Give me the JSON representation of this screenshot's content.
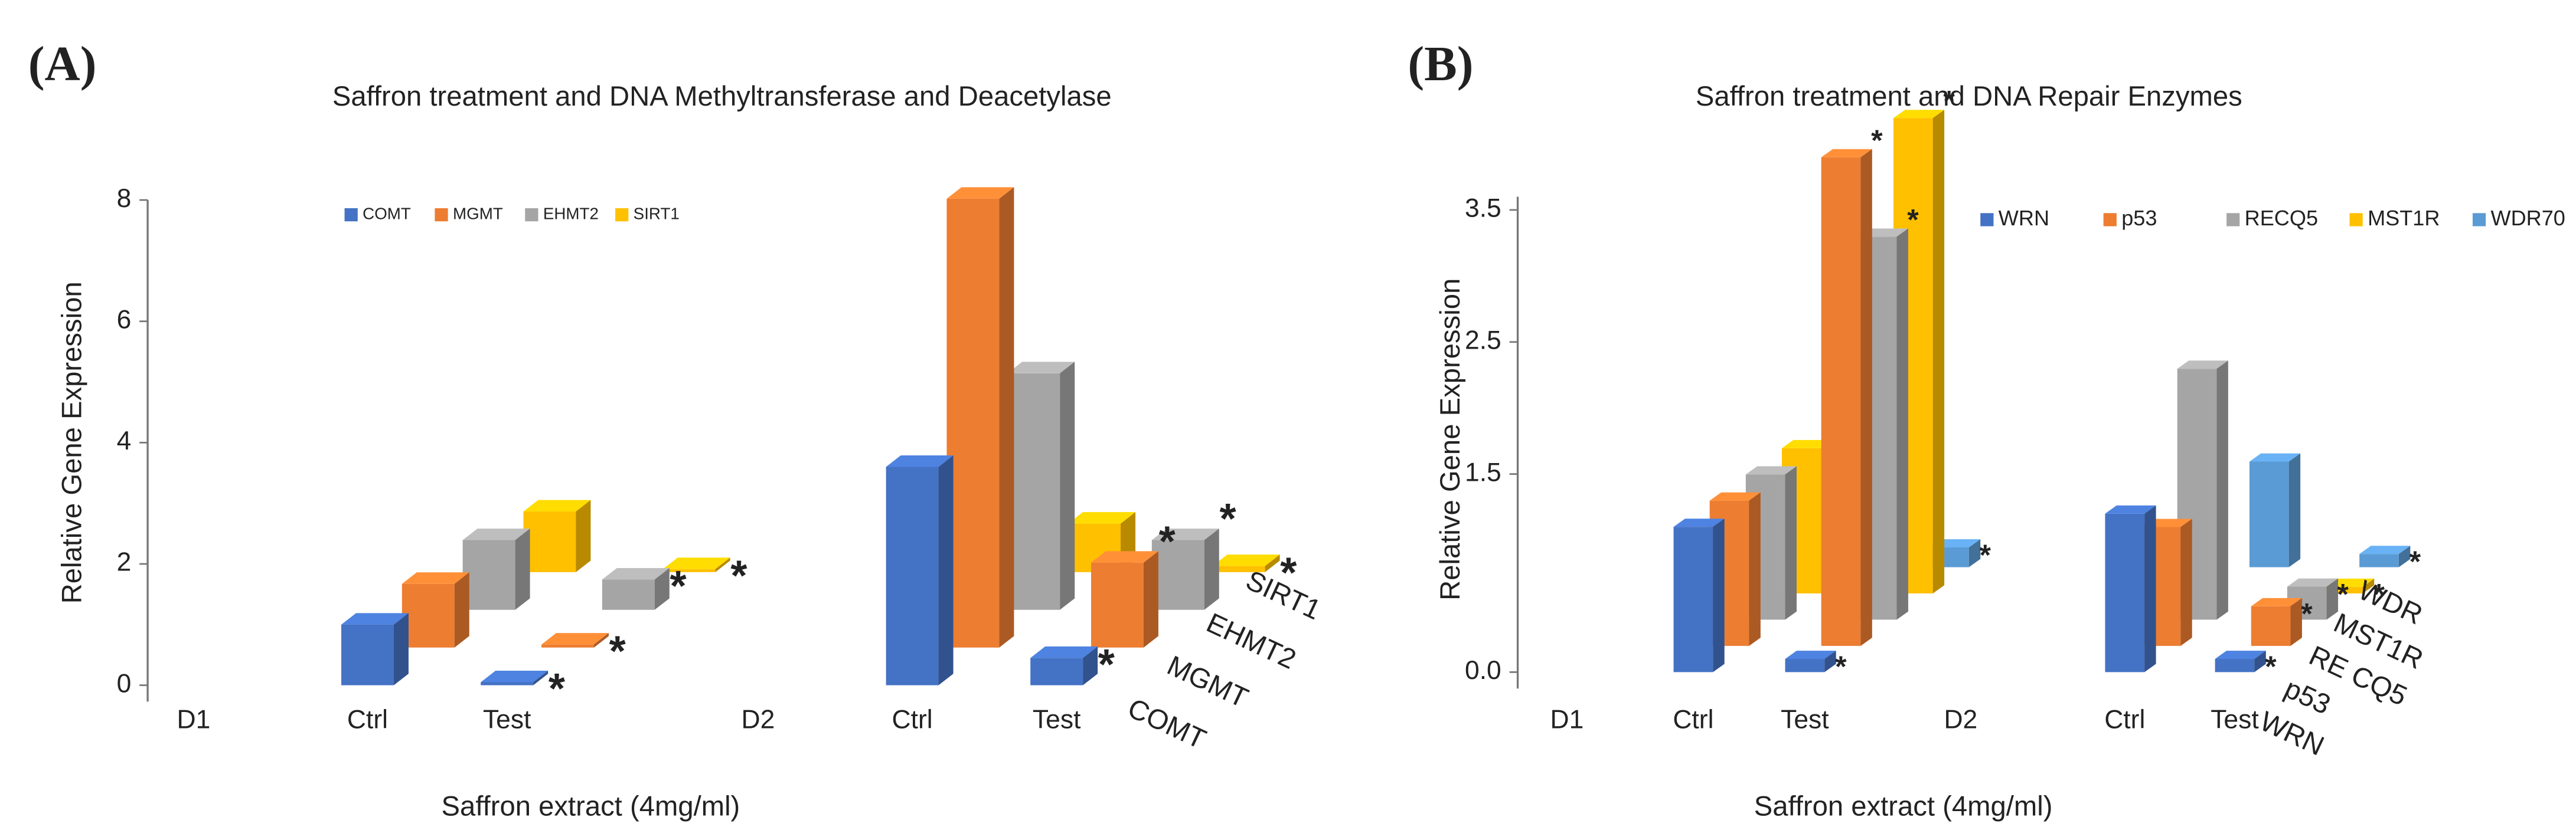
{
  "chart_data": [
    {
      "type": "bar3d",
      "panel_label": "(A)",
      "title": "Saffron treatment and DNA Methyltransferase and Deacetylase",
      "y_label": "Relative Gene Expression",
      "x_label": "Saffron extract (4mg/ml)",
      "groups": [
        "D1",
        "D2"
      ],
      "categories": [
        "Ctrl",
        "Test",
        "Ctrl",
        "Test"
      ],
      "ylim": [
        0,
        8
      ],
      "yticks": [
        0,
        2,
        4,
        6,
        8
      ],
      "significance_marker": "*",
      "depth_labels": [
        "COMT",
        "MGMT",
        "EHMT2",
        "SIRT1"
      ],
      "series": [
        {
          "name": "COMT",
          "color": "#4472c4",
          "values": [
            1.0,
            0.05,
            3.6,
            0.45
          ],
          "significant": [
            false,
            true,
            false,
            true
          ]
        },
        {
          "name": "MGMT",
          "color": "#ed7d31",
          "values": [
            1.05,
            0.05,
            7.4,
            1.4
          ],
          "significant": [
            false,
            true,
            false,
            true
          ]
        },
        {
          "name": "EHMT2",
          "color": "#a5a5a5",
          "values": [
            1.15,
            0.5,
            3.9,
            1.15
          ],
          "significant": [
            false,
            true,
            false,
            true
          ]
        },
        {
          "name": "SIRT1",
          "color": "#ffc000",
          "values": [
            1.0,
            0.05,
            0.8,
            0.1
          ],
          "significant": [
            false,
            true,
            false,
            true
          ]
        }
      ]
    },
    {
      "type": "bar3d",
      "panel_label": "(B)",
      "title": "Saffron treatment and DNA Repair Enzymes",
      "y_label": "Relative Gene Expression",
      "x_label": "Saffron extract (4mg/ml)",
      "groups": [
        "D1",
        "D2"
      ],
      "categories": [
        "Ctrl",
        "Test",
        "Ctrl",
        "Test"
      ],
      "ylim": [
        0,
        3.6
      ],
      "yticks": [
        {
          "value": 0,
          "label": "0.0"
        },
        1.5,
        2.5,
        3.5
      ],
      "significance_marker": "*",
      "depth_labels": [
        "WRN",
        "p53",
        "RE CQ5",
        "MST1R",
        "WDR"
      ],
      "series": [
        {
          "name": "WRN",
          "color": "#4472c4",
          "values": [
            1.1,
            0.1,
            1.2,
            0.1
          ],
          "significant": [
            false,
            true,
            false,
            true
          ]
        },
        {
          "name": "p53",
          "color": "#ed7d31",
          "values": [
            1.1,
            3.7,
            0.9,
            0.3
          ],
          "significant": [
            false,
            true,
            false,
            true
          ]
        },
        {
          "name": "RECQ5",
          "color": "#a5a5a5",
          "values": [
            1.1,
            2.9,
            1.9,
            0.25
          ],
          "significant": [
            false,
            true,
            false,
            true
          ]
        },
        {
          "name": "MST1R",
          "color": "#ffc000",
          "values": [
            1.1,
            3.6,
            null,
            0.05
          ],
          "significant": [
            false,
            true,
            false,
            true
          ]
        },
        {
          "name": "WDR70",
          "color": "#5b9bd5",
          "values": [
            null,
            0.15,
            0.8,
            0.1
          ],
          "significant": [
            false,
            true,
            false,
            true
          ]
        }
      ]
    }
  ]
}
